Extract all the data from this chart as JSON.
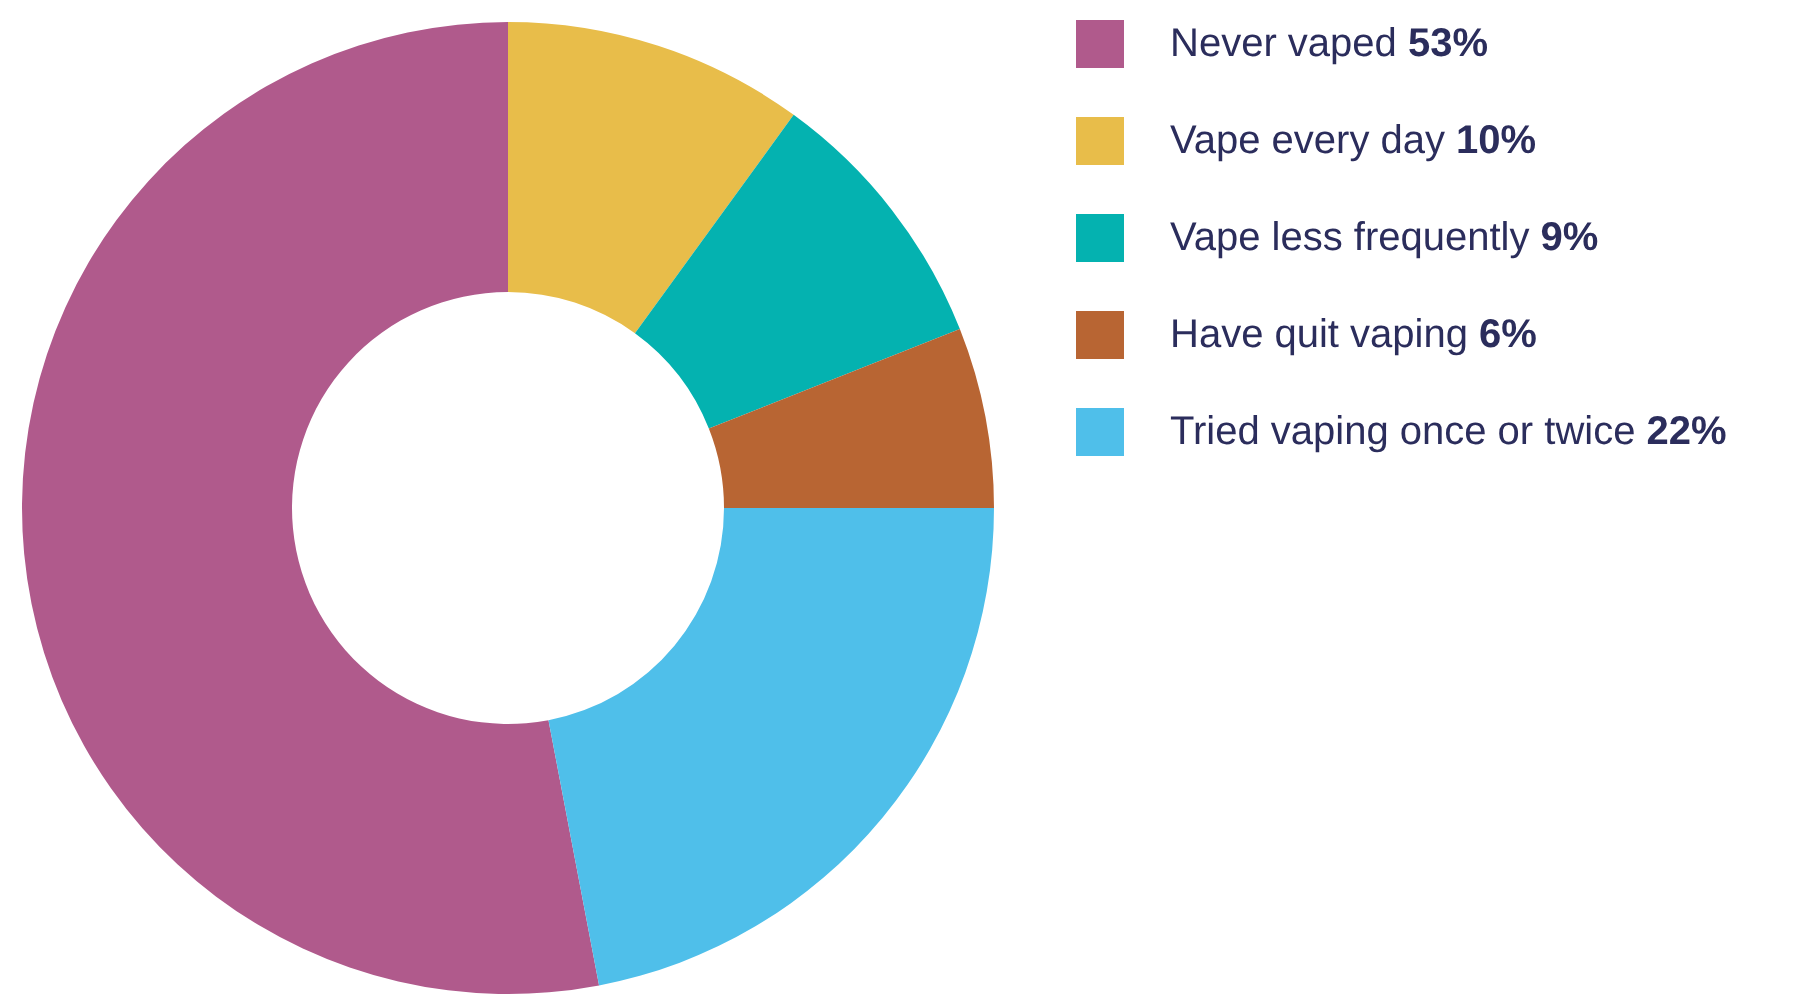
{
  "chart_data": {
    "type": "donut",
    "categories": [
      "Never vaped",
      "Vape every day",
      "Vape less frequently",
      "Have quit vaping",
      "Tried vaping once or twice"
    ],
    "values": [
      53,
      10,
      9,
      6,
      22
    ],
    "value_labels": [
      "53%",
      "10%",
      "9%",
      "6%",
      "22%"
    ],
    "colors": [
      "#b05a8c",
      "#e8bd4a",
      "#04b2b0",
      "#b86533",
      "#4fbfea"
    ],
    "legend": "right"
  }
}
